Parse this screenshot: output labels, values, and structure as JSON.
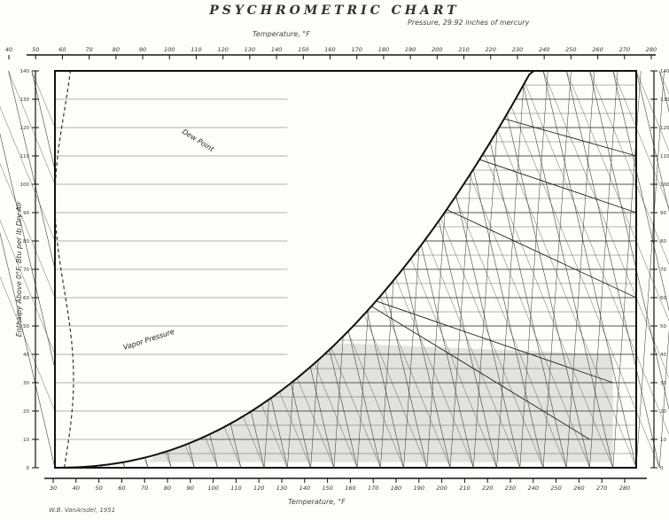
{
  "chart_data": {
    "type": "line",
    "title": "PSYCHROMETRIC CHART",
    "subtitle": "Pressure, 29.92 inches of mercury",
    "xlabel_top": "Temperature, °F",
    "xlabel_bottom": "Temperature, °F",
    "ylabel_left": "Enthalpy Above 0°F, Btu per lb Dry Air",
    "credit": "W.B. VanArsdel, 1951",
    "annotations": [
      "Vapor Pressure",
      "Dew Point"
    ],
    "x_ticks_top": [
      40,
      50,
      60,
      70,
      80,
      90,
      100,
      110,
      120,
      130,
      140,
      150,
      160,
      170,
      180,
      190,
      200,
      210,
      220,
      230,
      240,
      250,
      260,
      270,
      280
    ],
    "x_ticks_bottom": [
      30,
      40,
      50,
      60,
      70,
      80,
      90,
      100,
      110,
      120,
      130,
      140,
      150,
      160,
      170,
      180,
      190,
      200,
      210,
      220,
      230,
      240,
      250,
      260,
      270,
      280
    ],
    "y_ticks_left": [
      140,
      130,
      120,
      110,
      100,
      90,
      80,
      70,
      60,
      50,
      40,
      30,
      20,
      10,
      0
    ],
    "y_ticks_right": [
      140,
      130,
      120,
      110,
      100,
      90,
      80,
      70,
      60,
      50,
      40,
      30,
      20,
      10,
      0
    ],
    "xlim": [
      30,
      280
    ],
    "ylim": [
      0,
      140
    ],
    "grid": true
  }
}
